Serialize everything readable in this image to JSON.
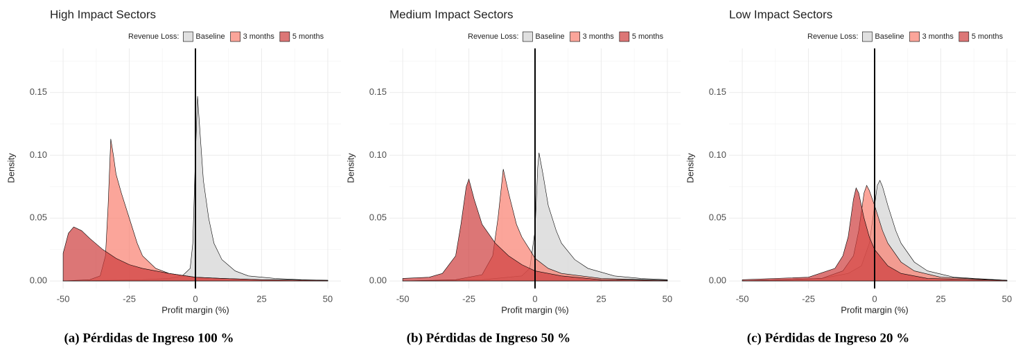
{
  "chart_data": [
    {
      "type": "area",
      "title": "High Impact Sectors",
      "legend_title": "Revenue Loss:",
      "xlabel": "Profit margin (%)",
      "ylabel": "Density",
      "caption": "(a) Pérdidas de Ingreso 100 %",
      "xlim": [
        -55,
        55
      ],
      "ylim": [
        -0.006,
        0.185
      ],
      "xticks": [
        -50,
        -25,
        0,
        25,
        50
      ],
      "yticks": [
        {
          "value": 0,
          "label": "0.00"
        },
        0.05,
        {
          "value": 0.1,
          "label": "0.10"
        },
        0.15
      ],
      "grid": true,
      "vline": 0,
      "series": [
        {
          "name": "Baseline",
          "color": "#d3d3d3",
          "x": [
            -50,
            -20,
            -10,
            -5,
            -2,
            -1,
            0,
            0.8,
            2,
            3,
            5,
            7,
            10,
            15,
            20,
            30,
            40,
            50
          ],
          "values": [
            0,
            0.001,
            0.002,
            0.004,
            0.01,
            0.03,
            0.1,
            0.147,
            0.11,
            0.08,
            0.05,
            0.03,
            0.017,
            0.008,
            0.004,
            0.002,
            0.001,
            0.0005
          ]
        },
        {
          "name": "3 months",
          "color": "#fa7f6f",
          "x": [
            -50,
            -40,
            -36,
            -34,
            -33,
            -32,
            -31,
            -30,
            -28,
            -25,
            -22,
            -20,
            -15,
            -10,
            0,
            10,
            25,
            50
          ],
          "values": [
            0,
            0.001,
            0.004,
            0.02,
            0.06,
            0.113,
            0.1,
            0.085,
            0.07,
            0.05,
            0.03,
            0.02,
            0.01,
            0.006,
            0.003,
            0.002,
            0.001,
            0.0005
          ]
        },
        {
          "name": "5 months",
          "color": "#cd3c3c",
          "x": [
            -50,
            -48,
            -46,
            -43,
            -40,
            -35,
            -30,
            -25,
            -20,
            -10,
            0,
            10,
            25,
            50
          ],
          "values": [
            0.022,
            0.038,
            0.043,
            0.04,
            0.034,
            0.025,
            0.018,
            0.013,
            0.01,
            0.006,
            0.003,
            0.002,
            0.001,
            0.0005
          ]
        }
      ]
    },
    {
      "type": "area",
      "title": "Medium Impact Sectors",
      "legend_title": "Revenue Loss:",
      "xlabel": "Profit margin (%)",
      "ylabel": "Density",
      "caption": "(b) Pérdidas de Ingreso 50 %",
      "xlim": [
        -55,
        55
      ],
      "ylim": [
        -0.006,
        0.185
      ],
      "xticks": [
        -50,
        -25,
        0,
        25,
        50
      ],
      "yticks": [
        {
          "value": 0,
          "label": "0.00"
        },
        0.05,
        {
          "value": 0.1,
          "label": "0.10"
        },
        0.15
      ],
      "grid": true,
      "vline": 0,
      "series": [
        {
          "name": "Baseline",
          "color": "#d3d3d3",
          "x": [
            -50,
            -20,
            -5,
            -2,
            0,
            1,
            1.5,
            3,
            5,
            8,
            10,
            15,
            20,
            30,
            40,
            50
          ],
          "values": [
            0,
            0.001,
            0.004,
            0.01,
            0.04,
            0.09,
            0.102,
            0.085,
            0.06,
            0.04,
            0.03,
            0.017,
            0.01,
            0.004,
            0.002,
            0.001
          ]
        },
        {
          "name": "3 months",
          "color": "#fa7f6f",
          "x": [
            -50,
            -30,
            -20,
            -16,
            -14,
            -12,
            -10,
            -7,
            -5,
            -2,
            0,
            5,
            10,
            25,
            50
          ],
          "values": [
            0,
            0.001,
            0.005,
            0.02,
            0.05,
            0.089,
            0.07,
            0.045,
            0.035,
            0.025,
            0.018,
            0.01,
            0.006,
            0.002,
            0.0005
          ]
        },
        {
          "name": "5 months",
          "color": "#cd3c3c",
          "x": [
            -50,
            -40,
            -35,
            -30,
            -28,
            -26,
            -25,
            -23,
            -20,
            -15,
            -10,
            -5,
            0,
            10,
            25,
            50
          ],
          "values": [
            0.002,
            0.003,
            0.006,
            0.02,
            0.045,
            0.075,
            0.081,
            0.065,
            0.045,
            0.03,
            0.02,
            0.013,
            0.008,
            0.004,
            0.001,
            0.0005
          ]
        }
      ]
    },
    {
      "type": "area",
      "title": "Low Impact Sectors",
      "legend_title": "Revenue Loss:",
      "xlabel": "Profit margin (%)",
      "ylabel": "Density",
      "caption": "(c) Pérdidas de Ingreso 20 %",
      "xlim": [
        -55,
        55
      ],
      "ylim": [
        -0.006,
        0.185
      ],
      "xticks": [
        -50,
        -25,
        0,
        25,
        50
      ],
      "yticks": [
        {
          "value": 0,
          "label": "0.00"
        },
        0.05,
        {
          "value": 0.1,
          "label": "0.10"
        },
        0.15
      ],
      "grid": true,
      "vline": 0,
      "series": [
        {
          "name": "Baseline",
          "color": "#d3d3d3",
          "x": [
            -50,
            -20,
            -10,
            -5,
            -2,
            0,
            1,
            2,
            3,
            5,
            8,
            10,
            15,
            20,
            30,
            50
          ],
          "values": [
            0,
            0.002,
            0.006,
            0.012,
            0.03,
            0.06,
            0.076,
            0.08,
            0.075,
            0.06,
            0.04,
            0.03,
            0.015,
            0.008,
            0.003,
            0.0005
          ]
        },
        {
          "name": "3 months",
          "color": "#fa7f6f",
          "x": [
            -50,
            -20,
            -12,
            -8,
            -6,
            -4,
            -3,
            -2,
            0,
            3,
            5,
            10,
            15,
            25,
            50
          ],
          "values": [
            0,
            0.002,
            0.008,
            0.02,
            0.04,
            0.07,
            0.076,
            0.072,
            0.06,
            0.04,
            0.03,
            0.015,
            0.008,
            0.003,
            0.0005
          ]
        },
        {
          "name": "5 months",
          "color": "#cd3c3c",
          "x": [
            -50,
            -25,
            -15,
            -12,
            -10,
            -8,
            -7,
            -6,
            -4,
            -2,
            0,
            5,
            10,
            20,
            50
          ],
          "values": [
            0.001,
            0.003,
            0.01,
            0.02,
            0.035,
            0.065,
            0.074,
            0.07,
            0.05,
            0.035,
            0.025,
            0.012,
            0.006,
            0.002,
            0.0005
          ]
        }
      ]
    }
  ]
}
